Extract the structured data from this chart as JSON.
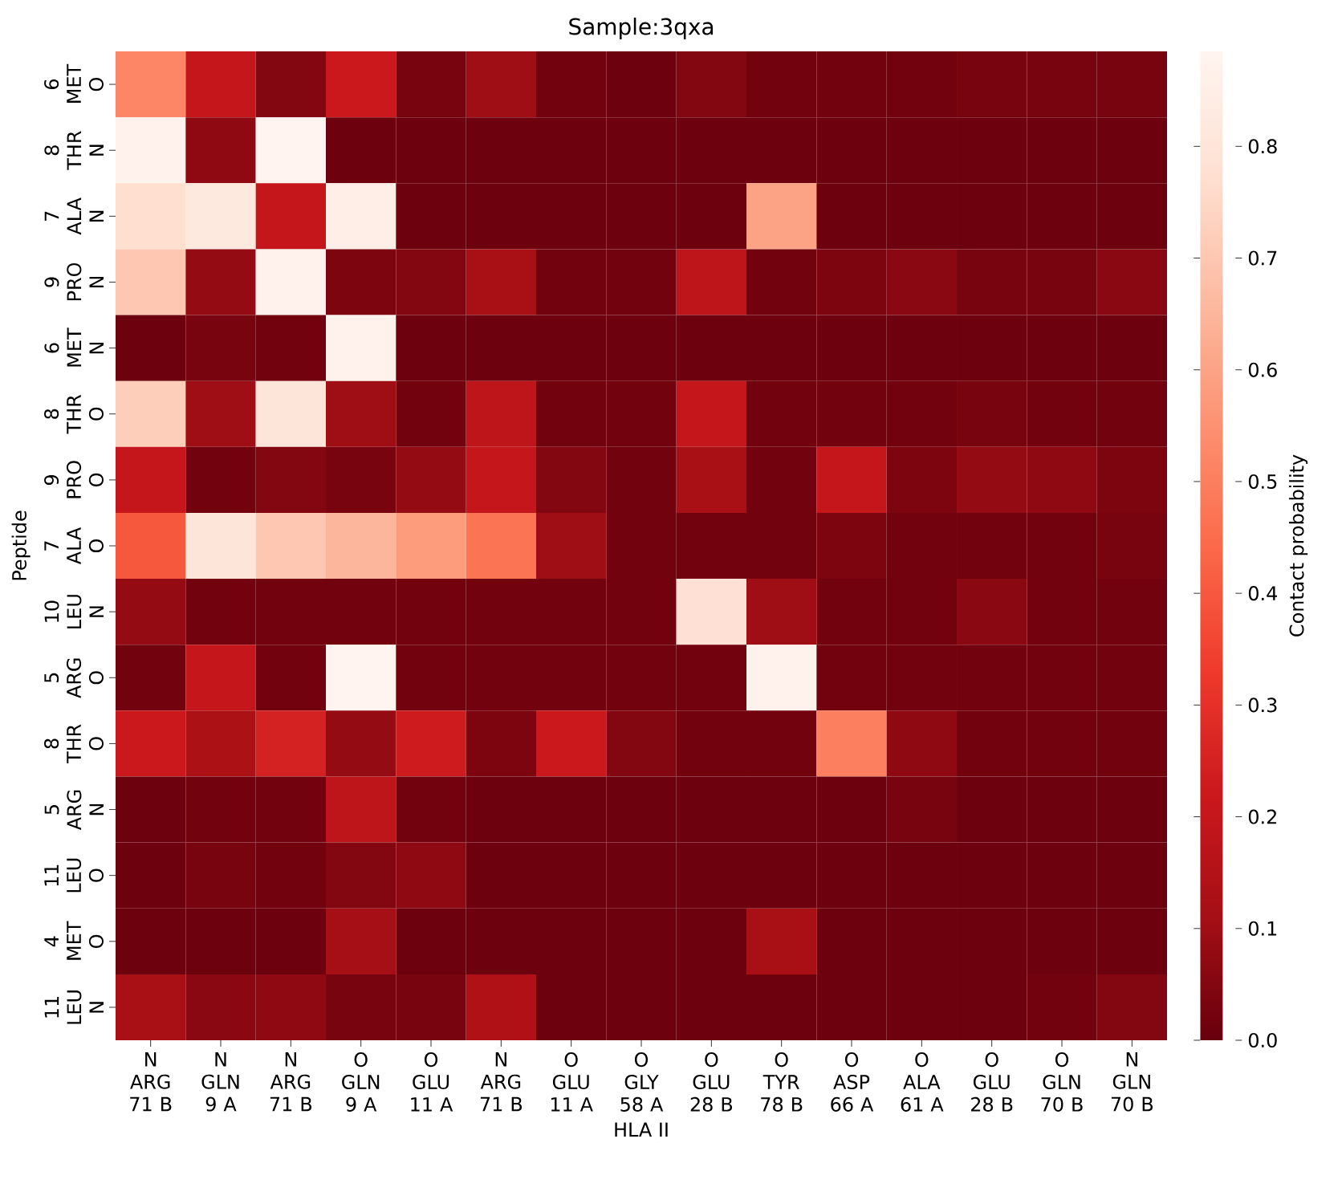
{
  "chart_data": {
    "type": "heatmap",
    "title": "Sample:3qxa",
    "xlabel": "HLA II",
    "ylabel": "Peptide",
    "clabel": "Contact probability",
    "categories": [
      "N ARG 71 B",
      "N GLN 9 A",
      "N ARG 71 B",
      "O GLN 9 A",
      "O GLU 11 A",
      "N ARG 71 B",
      "O GLU 11 A",
      "O GLY 58 A",
      "O GLU 28 B",
      "O TYR 78 B",
      "O ASP 66 A",
      "O ALA 61 A",
      "O GLU 28 B",
      "O GLN 70 B",
      "N GLN 70 B"
    ],
    "y_categories": [
      "6 MET O",
      "8 THR N",
      "7 ALA N",
      "9 PRO N",
      "6 MET N",
      "8 THR O",
      "9 PRO O",
      "7 ALA O",
      "10 LEU N",
      "5 ARG O",
      "8 THR O",
      "5 ARG N",
      "11 LEU O",
      "4 MET O",
      "11 LEU N"
    ],
    "cells": [
      [
        0.52,
        0.2,
        0.05,
        0.22,
        0.03,
        0.1,
        0.02,
        0.01,
        0.05,
        0.02,
        0.02,
        0.02,
        0.03,
        0.03,
        0.03
      ],
      [
        0.87,
        0.07,
        0.88,
        0.01,
        0.01,
        0.01,
        0.01,
        0.01,
        0.01,
        0.01,
        0.01,
        0.01,
        0.01,
        0.01,
        0.01
      ],
      [
        0.77,
        0.82,
        0.2,
        0.85,
        0.01,
        0.01,
        0.01,
        0.01,
        0.01,
        0.6,
        0.01,
        0.01,
        0.01,
        0.01,
        0.01
      ],
      [
        0.7,
        0.08,
        0.87,
        0.04,
        0.05,
        0.12,
        0.02,
        0.02,
        0.18,
        0.02,
        0.04,
        0.06,
        0.03,
        0.03,
        0.06
      ],
      [
        0.01,
        0.03,
        0.02,
        0.87,
        0.01,
        0.01,
        0.01,
        0.01,
        0.01,
        0.01,
        0.01,
        0.01,
        0.01,
        0.01,
        0.01
      ],
      [
        0.72,
        0.1,
        0.8,
        0.1,
        0.02,
        0.18,
        0.02,
        0.02,
        0.2,
        0.02,
        0.02,
        0.02,
        0.03,
        0.02,
        0.02
      ],
      [
        0.2,
        0.02,
        0.05,
        0.03,
        0.08,
        0.2,
        0.05,
        0.02,
        0.12,
        0.02,
        0.2,
        0.04,
        0.08,
        0.07,
        0.04
      ],
      [
        0.4,
        0.8,
        0.7,
        0.65,
        0.58,
        0.47,
        0.1,
        0.02,
        0.02,
        0.02,
        0.04,
        0.02,
        0.02,
        0.02,
        0.03
      ],
      [
        0.08,
        0.02,
        0.02,
        0.02,
        0.02,
        0.02,
        0.02,
        0.02,
        0.78,
        0.1,
        0.02,
        0.02,
        0.06,
        0.02,
        0.02
      ],
      [
        0.02,
        0.2,
        0.02,
        0.88,
        0.02,
        0.02,
        0.02,
        0.02,
        0.02,
        0.87,
        0.02,
        0.02,
        0.02,
        0.02,
        0.02
      ],
      [
        0.22,
        0.13,
        0.25,
        0.08,
        0.23,
        0.04,
        0.22,
        0.05,
        0.02,
        0.02,
        0.5,
        0.07,
        0.02,
        0.02,
        0.02
      ],
      [
        0.01,
        0.02,
        0.02,
        0.18,
        0.02,
        0.01,
        0.01,
        0.01,
        0.01,
        0.01,
        0.01,
        0.03,
        0.01,
        0.01,
        0.01
      ],
      [
        0.01,
        0.03,
        0.02,
        0.05,
        0.07,
        0.01,
        0.01,
        0.01,
        0.01,
        0.01,
        0.01,
        0.01,
        0.01,
        0.01,
        0.01
      ],
      [
        0.01,
        0.01,
        0.01,
        0.11,
        0.01,
        0.01,
        0.01,
        0.01,
        0.01,
        0.12,
        0.01,
        0.01,
        0.01,
        0.01,
        0.01
      ],
      [
        0.12,
        0.06,
        0.07,
        0.03,
        0.03,
        0.14,
        0.01,
        0.01,
        0.01,
        0.01,
        0.01,
        0.01,
        0.01,
        0.02,
        0.05
      ]
    ],
    "clim": [
      0,
      0.885
    ],
    "cticks": [
      {
        "value": 0,
        "label": "0.0"
      },
      0.1,
      0.2,
      0.3,
      0.4,
      0.5,
      0.6,
      0.7,
      0.8
    ]
  }
}
